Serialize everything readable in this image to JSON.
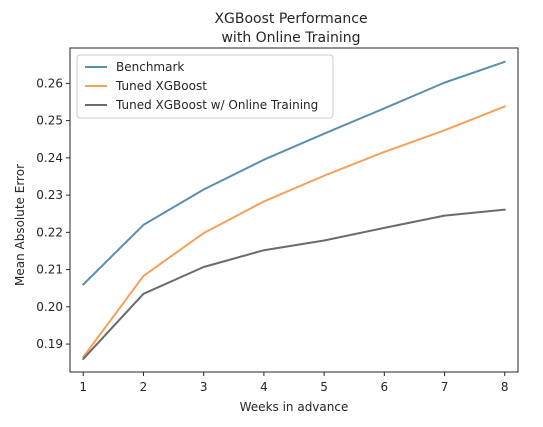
{
  "chart_data": {
    "type": "line",
    "title_lines": [
      "XGBoost Performance",
      "with Online Training"
    ],
    "xlabel": "Weeks in advance",
    "ylabel": "Mean Absolute Error",
    "x": [
      1,
      2,
      3,
      4,
      5,
      6,
      7,
      8
    ],
    "xlim": [
      0.78,
      8.22
    ],
    "ylim": [
      0.1825,
      0.2695
    ],
    "xticks": [
      "1",
      "2",
      "3",
      "4",
      "5",
      "6",
      "7",
      "8"
    ],
    "yticks": [
      "0.19",
      "0.20",
      "0.21",
      "0.22",
      "0.23",
      "0.24",
      "0.25",
      "0.26"
    ],
    "grid": false,
    "legend_position": "upper-left",
    "series": [
      {
        "name": "Benchmark",
        "color": "#5b8fb2",
        "values": [
          0.206,
          0.222,
          0.2315,
          0.2395,
          0.2465,
          0.2533,
          0.2602,
          0.2658
        ]
      },
      {
        "name": "Tuned XGBoost",
        "color": "#f6a05a",
        "values": [
          0.1865,
          0.2083,
          0.2198,
          0.2283,
          0.2352,
          0.2416,
          0.2474,
          0.2538
        ]
      },
      {
        "name": "Tuned XGBoost w/ Online Training",
        "color": "#6b6b6b",
        "values": [
          0.186,
          0.2035,
          0.2107,
          0.2152,
          0.2178,
          0.2212,
          0.2245,
          0.2261
        ]
      }
    ]
  }
}
